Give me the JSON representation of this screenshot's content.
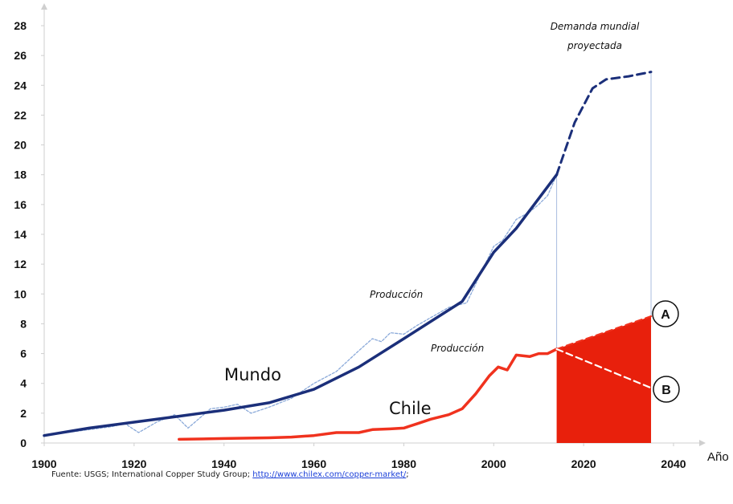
{
  "chart_data": {
    "type": "line",
    "xlabel": "Año",
    "ylabel": "",
    "xlim": [
      1900,
      2040
    ],
    "ylim": [
      0,
      28
    ],
    "x_ticks": [
      1900,
      1920,
      1940,
      1960,
      1980,
      2000,
      2020,
      2040
    ],
    "y_ticks": [
      0,
      2,
      4,
      6,
      8,
      10,
      12,
      14,
      16,
      18,
      20,
      22,
      24,
      26,
      28
    ],
    "series": [
      {
        "name": "Mundo",
        "style": "trend",
        "color": "#1b2f7a",
        "points": [
          [
            1900,
            0.5
          ],
          [
            1910,
            1.0
          ],
          [
            1920,
            1.4
          ],
          [
            1930,
            1.8
          ],
          [
            1940,
            2.2
          ],
          [
            1950,
            2.7
          ],
          [
            1960,
            3.6
          ],
          [
            1970,
            5.1
          ],
          [
            1980,
            7.0
          ],
          [
            1993,
            9.5
          ],
          [
            2000,
            12.8
          ],
          [
            2005,
            14.4
          ],
          [
            2014,
            18.0
          ]
        ]
      },
      {
        "name": "Producción",
        "style": "actual",
        "color": "#8aa9d9",
        "points": [
          [
            1900,
            0.5
          ],
          [
            1905,
            0.7
          ],
          [
            1910,
            0.9
          ],
          [
            1915,
            1.1
          ],
          [
            1918,
            1.3
          ],
          [
            1921,
            0.7
          ],
          [
            1925,
            1.4
          ],
          [
            1929,
            1.9
          ],
          [
            1932,
            1.0
          ],
          [
            1937,
            2.3
          ],
          [
            1940,
            2.4
          ],
          [
            1943,
            2.6
          ],
          [
            1946,
            2.0
          ],
          [
            1950,
            2.4
          ],
          [
            1955,
            3.0
          ],
          [
            1960,
            4.0
          ],
          [
            1965,
            4.8
          ],
          [
            1970,
            6.2
          ],
          [
            1973,
            7.0
          ],
          [
            1975,
            6.8
          ],
          [
            1977,
            7.4
          ],
          [
            1980,
            7.3
          ],
          [
            1983,
            7.9
          ],
          [
            1990,
            9.1
          ],
          [
            1994,
            9.4
          ],
          [
            1997,
            11.3
          ],
          [
            2000,
            13.2
          ],
          [
            2002,
            13.6
          ],
          [
            2005,
            15.0
          ],
          [
            2008,
            15.5
          ],
          [
            2010,
            16.0
          ],
          [
            2012,
            16.6
          ],
          [
            2014,
            18.0
          ]
        ]
      },
      {
        "name": "Demanda mundial proyectada",
        "style": "dashed",
        "color": "#1b2f7a",
        "points": [
          [
            2014,
            18.0
          ],
          [
            2018,
            21.5
          ],
          [
            2022,
            23.8
          ],
          [
            2025,
            24.4
          ],
          [
            2030,
            24.6
          ],
          [
            2035,
            24.9
          ]
        ]
      },
      {
        "name": "Chile",
        "style": "solid",
        "color": "#f0321e",
        "points": [
          [
            1930,
            0.25
          ],
          [
            1940,
            0.3
          ],
          [
            1950,
            0.35
          ],
          [
            1955,
            0.4
          ],
          [
            1960,
            0.5
          ],
          [
            1965,
            0.7
          ],
          [
            1970,
            0.7
          ],
          [
            1973,
            0.9
          ],
          [
            1977,
            0.95
          ],
          [
            1980,
            1.0
          ],
          [
            1983,
            1.3
          ],
          [
            1986,
            1.6
          ],
          [
            1990,
            1.9
          ],
          [
            1993,
            2.3
          ],
          [
            1996,
            3.3
          ],
          [
            1999,
            4.5
          ],
          [
            2001,
            5.1
          ],
          [
            2003,
            4.9
          ],
          [
            2005,
            5.9
          ],
          [
            2008,
            5.8
          ],
          [
            2010,
            6.0
          ],
          [
            2012,
            6.0
          ],
          [
            2014,
            6.3
          ]
        ]
      },
      {
        "name": "A",
        "style": "dashed-projection",
        "color": "#f0321e",
        "points": [
          [
            2014,
            6.3
          ],
          [
            2035,
            8.5
          ]
        ]
      },
      {
        "name": "B",
        "style": "dashed-projection",
        "color": "#ffffff",
        "points": [
          [
            2014,
            6.3
          ],
          [
            2035,
            3.7
          ]
        ]
      }
    ],
    "shaded_region": {
      "x": [
        2014,
        2035
      ],
      "top": [
        6.3,
        8.5
      ],
      "color": "#e8200c"
    },
    "annotations": {
      "projected_demand_line1": "Demanda mundial",
      "projected_demand_line2": "proyectada",
      "world_production": "Producción",
      "chile_production": "Producción",
      "world_label": "Mundo",
      "chile_label": "Chile",
      "scenario_a": "A",
      "scenario_b": "B"
    }
  },
  "source": {
    "prefix": "Fuente: USGS; International Copper Study Group; ",
    "link": "http://www.chilex.com/copper-market/",
    "suffix": ";"
  }
}
